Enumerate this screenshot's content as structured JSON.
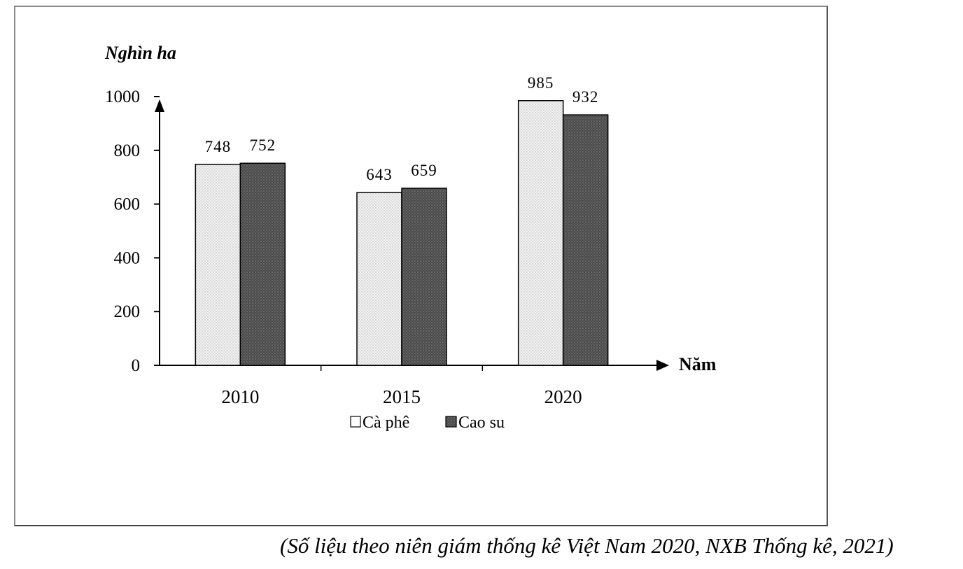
{
  "chart_data": {
    "type": "bar",
    "ylabel": "Nghìn ha",
    "xlabel": "Năm",
    "categories": [
      "2010",
      "2015",
      "2020"
    ],
    "series": [
      {
        "name": "Cà phê",
        "values": [
          748,
          643,
          985
        ]
      },
      {
        "name": "Cao su",
        "values": [
          752,
          659,
          932
        ]
      }
    ],
    "ylim": [
      0,
      1000
    ],
    "yticks": [
      "0",
      "200",
      "400",
      "600",
      "800",
      "1000"
    ],
    "legend_position": "bottom",
    "grid": false,
    "series_colors": [
      "#eeeeee",
      "#555555"
    ]
  },
  "source_note": "(Số liệu theo niên giám thống kê Việt Nam 2020, NXB Thống kê, 2021)"
}
